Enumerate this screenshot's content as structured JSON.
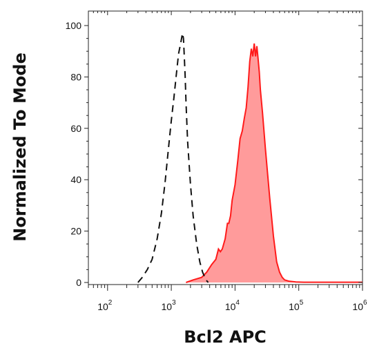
{
  "chart_data": {
    "type": "area",
    "title": "",
    "xlabel": "Bcl2 APC",
    "ylabel": "Normalized To Mode",
    "xscale": "log",
    "xlim": [
      50,
      1000000
    ],
    "ylim": [
      0,
      100
    ],
    "yticks": [
      0,
      20,
      40,
      60,
      80,
      100
    ],
    "xticks": [
      {
        "base": "10",
        "exp": "2",
        "value": 100
      },
      {
        "base": "10",
        "exp": "3",
        "value": 1000
      },
      {
        "base": "10",
        "exp": "4",
        "value": 10000
      },
      {
        "base": "10",
        "exp": "5",
        "value": 100000
      },
      {
        "base": "10",
        "exp": "6",
        "value": 1000000
      }
    ],
    "grid": false,
    "legend": "none",
    "series": [
      {
        "style": "dashed",
        "fill": "none",
        "color": "#111111",
        "x": [
          300,
          350,
          420,
          500,
          600,
          700,
          800,
          900,
          1000,
          1100,
          1200,
          1300,
          1400,
          1500,
          1550,
          1600,
          1650,
          1700,
          1800,
          2000,
          2200,
          2500,
          2800,
          3100,
          3500,
          3800
        ],
        "y": [
          0,
          2,
          5,
          9,
          17,
          27,
          39,
          52,
          63,
          72,
          81,
          89,
          93,
          97,
          95,
          88,
          80,
          70,
          55,
          38,
          26,
          15,
          8,
          4,
          1,
          0
        ]
      },
      {
        "style": "solid",
        "fill": "#ff9b9b",
        "color": "#ff1a1a",
        "x": [
          1700,
          2200,
          3000,
          3600,
          4300,
          5000,
          5500,
          5900,
          6300,
          7000,
          7600,
          8000,
          8500,
          9000,
          9500,
          10000,
          11000,
          12000,
          13000,
          14000,
          15000,
          16000,
          17000,
          18000,
          19000,
          20000,
          21000,
          22000,
          23000,
          24000,
          25000,
          27000,
          30000,
          35000,
          40000,
          45000,
          50000,
          55000,
          60000,
          70000,
          90000,
          120000,
          200000,
          500000,
          1000000
        ],
        "y": [
          0,
          1,
          2,
          4,
          7,
          9,
          13,
          12,
          13,
          17,
          23,
          23,
          26,
          32,
          35,
          38,
          47,
          56,
          59,
          64,
          68,
          76,
          86,
          91,
          88,
          93,
          88,
          92,
          87,
          82,
          75,
          66,
          52,
          33,
          18,
          8,
          4,
          2,
          1,
          0.5,
          0.2,
          0.1,
          0.1,
          0.1,
          0.1
        ]
      }
    ]
  }
}
